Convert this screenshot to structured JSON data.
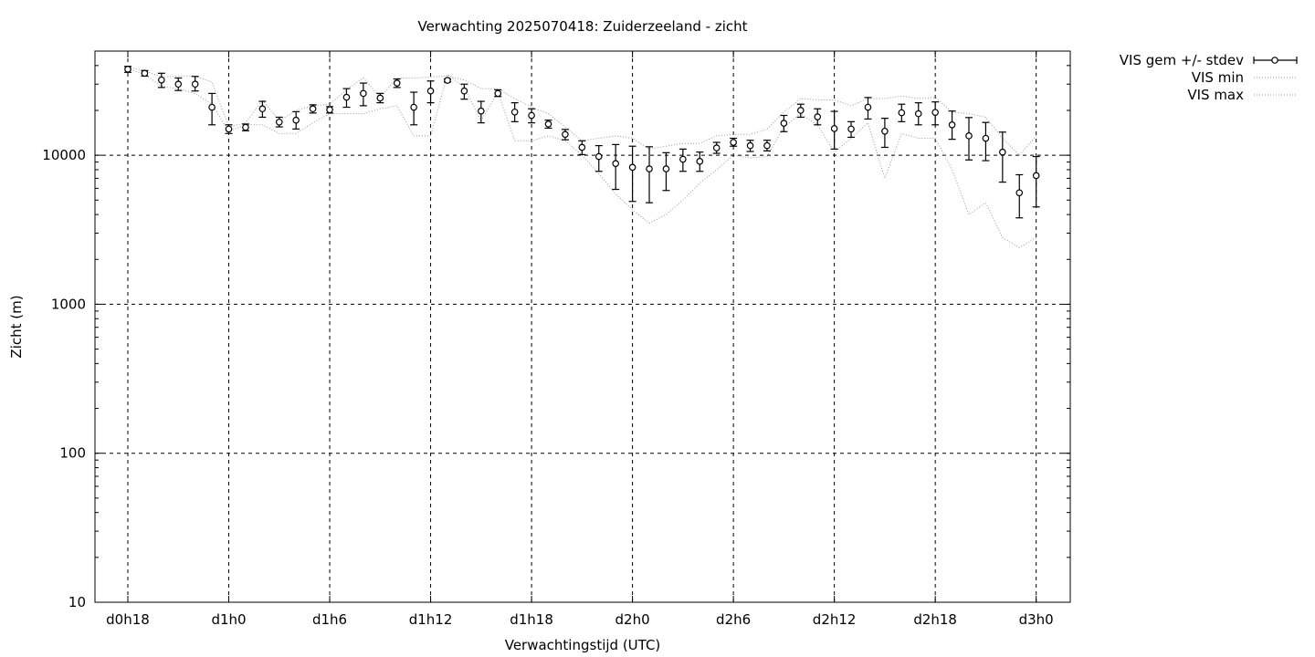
{
  "chart_data": {
    "type": "scatter",
    "title": "Verwachting 2025070418: Zuiderzeeland - zicht",
    "xlabel": "Verwachtingstijd (UTC)",
    "ylabel": "Zicht (m)",
    "y_scale": "log",
    "ylim": [
      10,
      50000
    ],
    "xlim": [
      -2,
      56
    ],
    "grid": true,
    "x_tick_values": [
      0,
      6,
      12,
      18,
      24,
      30,
      36,
      42,
      48,
      54
    ],
    "x_tick_labels": [
      "d0h18",
      "d1h0",
      "d1h6",
      "d1h12",
      "d1h18",
      "d2h0",
      "d2h6",
      "d2h12",
      "d2h18",
      "d3h0"
    ],
    "y_tick_values": [
      10,
      100,
      1000,
      10000
    ],
    "y_tick_labels": [
      "10",
      "100",
      "1000",
      "10000"
    ],
    "legend_position": "outside-top-right",
    "series": [
      {
        "name": "VIS gem +/- stdev",
        "style": "points-errorbars",
        "x": [
          0,
          1,
          2,
          3,
          4,
          5,
          6,
          7,
          8,
          9,
          10,
          11,
          12,
          13,
          14,
          15,
          16,
          17,
          18,
          19,
          20,
          21,
          22,
          23,
          24,
          25,
          26,
          27,
          28,
          29,
          30,
          31,
          32,
          33,
          34,
          35,
          36,
          37,
          38,
          39,
          40,
          41,
          42,
          43,
          44,
          45,
          46,
          47,
          48,
          49,
          50,
          51,
          52,
          53,
          54
        ],
        "mean": [
          37800,
          35500,
          32000,
          30000,
          30000,
          21000,
          15000,
          15400,
          20500,
          16700,
          17200,
          20500,
          20200,
          24500,
          26000,
          24200,
          30500,
          21000,
          27000,
          31800,
          27000,
          19800,
          26000,
          19500,
          18500,
          16200,
          13800,
          11300,
          9800,
          8800,
          8300,
          8100,
          8100,
          9400,
          9100,
          11200,
          12200,
          11600,
          11600,
          16400,
          20000,
          18100,
          15100,
          15000,
          21000,
          14500,
          19300,
          19000,
          19400,
          16000,
          13500,
          13000,
          10500,
          5600,
          7300
        ],
        "stdev_low": [
          36000,
          34000,
          28500,
          27200,
          27000,
          16000,
          14000,
          14600,
          18000,
          15500,
          15000,
          19200,
          19200,
          21000,
          21500,
          22500,
          28500,
          16000,
          22500,
          31000,
          23800,
          16500,
          24800,
          16800,
          16500,
          15200,
          12700,
          10100,
          7800,
          5900,
          4900,
          4800,
          5800,
          7800,
          7800,
          10300,
          11500,
          10600,
          10700,
          14400,
          18000,
          16000,
          11000,
          13200,
          17500,
          11300,
          16800,
          16000,
          16000,
          12800,
          9300,
          9200,
          6600,
          3800,
          4500
        ],
        "stdev_high": [
          39500,
          37000,
          35500,
          33000,
          33800,
          26000,
          16000,
          16200,
          23000,
          18000,
          19600,
          21800,
          21200,
          28000,
          30500,
          26000,
          32500,
          26500,
          31500,
          32500,
          30000,
          23000,
          27500,
          22500,
          20500,
          17200,
          14900,
          12500,
          11600,
          11800,
          11500,
          11400,
          10400,
          11000,
          10500,
          12200,
          13000,
          12600,
          12600,
          18500,
          22000,
          20500,
          19700,
          16800,
          24400,
          17700,
          22000,
          22500,
          22800,
          19800,
          17900,
          16600,
          14300,
          7400,
          9800
        ]
      },
      {
        "name": "VIS min",
        "style": "dotted-line",
        "x": [
          0,
          1,
          2,
          3,
          4,
          5,
          6,
          7,
          8,
          9,
          10,
          11,
          12,
          13,
          14,
          15,
          16,
          17,
          18,
          19,
          20,
          21,
          22,
          23,
          24,
          25,
          26,
          27,
          28,
          29,
          30,
          31,
          32,
          33,
          34,
          35,
          36,
          37,
          38,
          39,
          40,
          41,
          42,
          43,
          44,
          45,
          46,
          47,
          48,
          49,
          50,
          51,
          52,
          53,
          54
        ],
        "values": [
          38000,
          35000,
          29000,
          28000,
          26000,
          22000,
          14500,
          16000,
          16000,
          14000,
          14000,
          16500,
          19000,
          19000,
          19000,
          20500,
          21500,
          13500,
          13500,
          35000,
          28500,
          17000,
          26500,
          12500,
          12500,
          13500,
          12500,
          10000,
          7500,
          5500,
          4300,
          3500,
          4000,
          5000,
          6500,
          8000,
          10000,
          9600,
          9800,
          15500,
          19000,
          16000,
          10500,
          13000,
          16500,
          7000,
          14000,
          13000,
          13000,
          8000,
          4000,
          4800,
          2800,
          2400,
          2800
        ]
      },
      {
        "name": "VIS max",
        "style": "dotted-line",
        "x": [
          0,
          1,
          2,
          3,
          4,
          5,
          6,
          7,
          8,
          9,
          10,
          11,
          12,
          13,
          14,
          15,
          16,
          17,
          18,
          19,
          20,
          21,
          22,
          23,
          24,
          25,
          26,
          27,
          28,
          29,
          30,
          31,
          32,
          33,
          34,
          35,
          36,
          37,
          38,
          39,
          40,
          41,
          42,
          43,
          44,
          45,
          46,
          47,
          48,
          49,
          50,
          51,
          52,
          53,
          54
        ],
        "values": [
          39000,
          37000,
          33500,
          34000,
          34000,
          31000,
          15500,
          16500,
          23500,
          17000,
          20000,
          21500,
          22000,
          27500,
          33000,
          24500,
          33000,
          33000,
          33500,
          34000,
          32000,
          28000,
          28000,
          24000,
          21000,
          19000,
          15500,
          12500,
          13000,
          13500,
          13000,
          11000,
          11500,
          12000,
          12000,
          13500,
          13800,
          13800,
          15000,
          19500,
          24000,
          23500,
          23500,
          21500,
          24000,
          24000,
          25000,
          24000,
          24500,
          19500,
          19000,
          18000,
          13000,
          10000,
          13500
        ]
      }
    ]
  }
}
